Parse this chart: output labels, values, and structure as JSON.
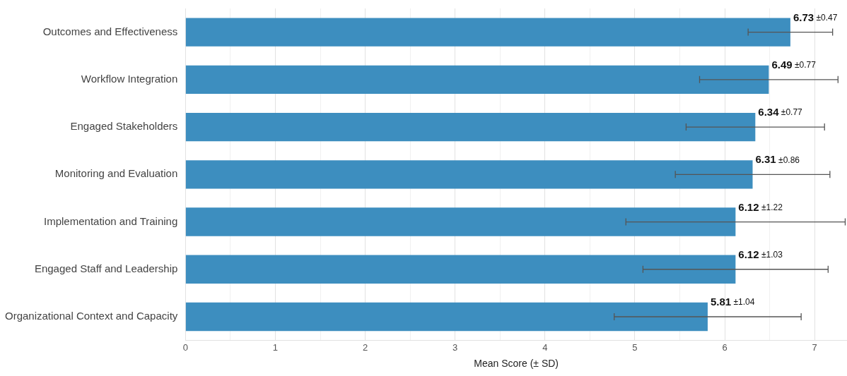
{
  "chart_data": {
    "type": "bar",
    "orientation": "horizontal",
    "xlabel": "Mean Score (± SD)",
    "categories": [
      "Outcomes and Effectiveness",
      "Workflow Integration",
      "Engaged Stakeholders",
      "Monitoring and Evaluation",
      "Implementation and Training",
      "Engaged Staff and Leadership",
      "Organizational Context and Capacity"
    ],
    "values": [
      6.73,
      6.49,
      6.34,
      6.31,
      6.12,
      6.12,
      5.81
    ],
    "errors": [
      0.47,
      0.77,
      0.77,
      0.86,
      1.22,
      1.03,
      1.04
    ],
    "value_labels": [
      "6.73 ±0.47",
      "6.49 ±0.77",
      "6.34 ±0.77",
      "6.31 ±0.86",
      "6.12 ±1.22",
      "6.12 ±1.03",
      "5.81 ±1.04"
    ],
    "color": "#3d8ebf",
    "xlim": [
      0,
      7.36
    ],
    "xticks": [
      0,
      {
        "value": 0.5,
        "label": null
      },
      1,
      {
        "value": 1.5,
        "label": null
      },
      2,
      {
        "value": 2.5,
        "label": null
      },
      3,
      {
        "value": 3.5,
        "label": null
      },
      4,
      {
        "value": 4.5,
        "label": null
      },
      5,
      {
        "value": 5.5,
        "label": null
      },
      6,
      {
        "value": 6.5,
        "label": null
      },
      7
    ],
    "grid": "x",
    "legend": false
  }
}
